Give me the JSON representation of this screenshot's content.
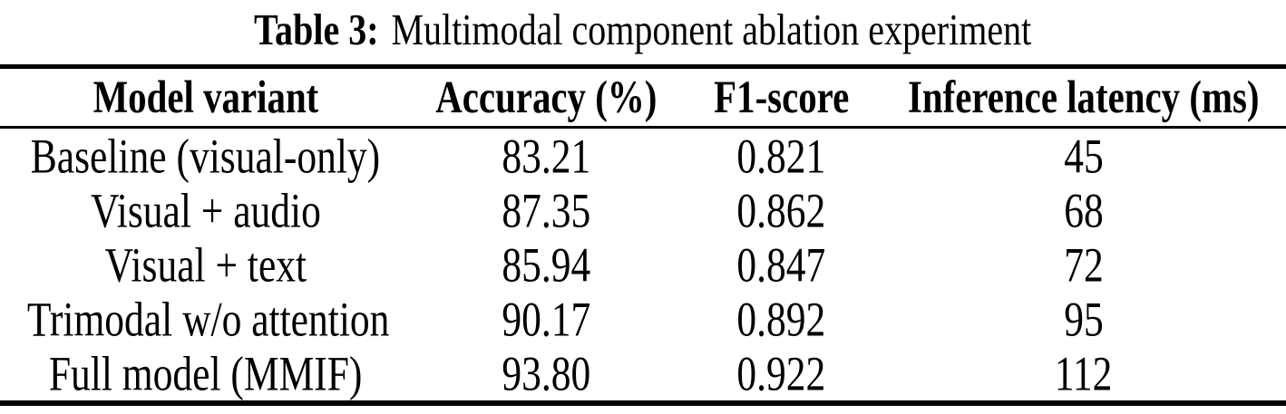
{
  "page": {
    "background_color": "#ffffff",
    "text_color": "#000000",
    "rule_color": "#000000"
  },
  "caption": {
    "label": "Table 3:",
    "title": "Multimodal component ablation experiment"
  },
  "table": {
    "columns": [
      "Model variant",
      "Accuracy (%)",
      "F1-score",
      "Inference latency (ms)"
    ],
    "rows": [
      [
        "Baseline (visual-only)",
        "83.21",
        "0.821",
        "45"
      ],
      [
        "Visual + audio",
        "87.35",
        "0.862",
        "68"
      ],
      [
        "Visual + text",
        "85.94",
        "0.847",
        "72"
      ],
      [
        "Trimodal w/o attention",
        "90.17",
        "0.892",
        "95"
      ],
      [
        "Full model (MMIF)",
        "93.80",
        "0.922",
        "112"
      ]
    ]
  },
  "chart_data": {
    "type": "table",
    "title": "Table 3: Multimodal component ablation experiment",
    "columns": [
      "Model variant",
      "Accuracy (%)",
      "F1-score",
      "Inference latency (ms)"
    ],
    "rows": [
      {
        "model_variant": "Baseline (visual-only)",
        "accuracy_pct": 83.21,
        "f1_score": 0.821,
        "inference_latency_ms": 45
      },
      {
        "model_variant": "Visual + audio",
        "accuracy_pct": 87.35,
        "f1_score": 0.862,
        "inference_latency_ms": 68
      },
      {
        "model_variant": "Visual + text",
        "accuracy_pct": 85.94,
        "f1_score": 0.847,
        "inference_latency_ms": 72
      },
      {
        "model_variant": "Trimodal w/o attention",
        "accuracy_pct": 90.17,
        "f1_score": 0.892,
        "inference_latency_ms": 95
      },
      {
        "model_variant": "Full model (MMIF)",
        "accuracy_pct": 93.8,
        "f1_score": 0.922,
        "inference_latency_ms": 112
      }
    ]
  }
}
